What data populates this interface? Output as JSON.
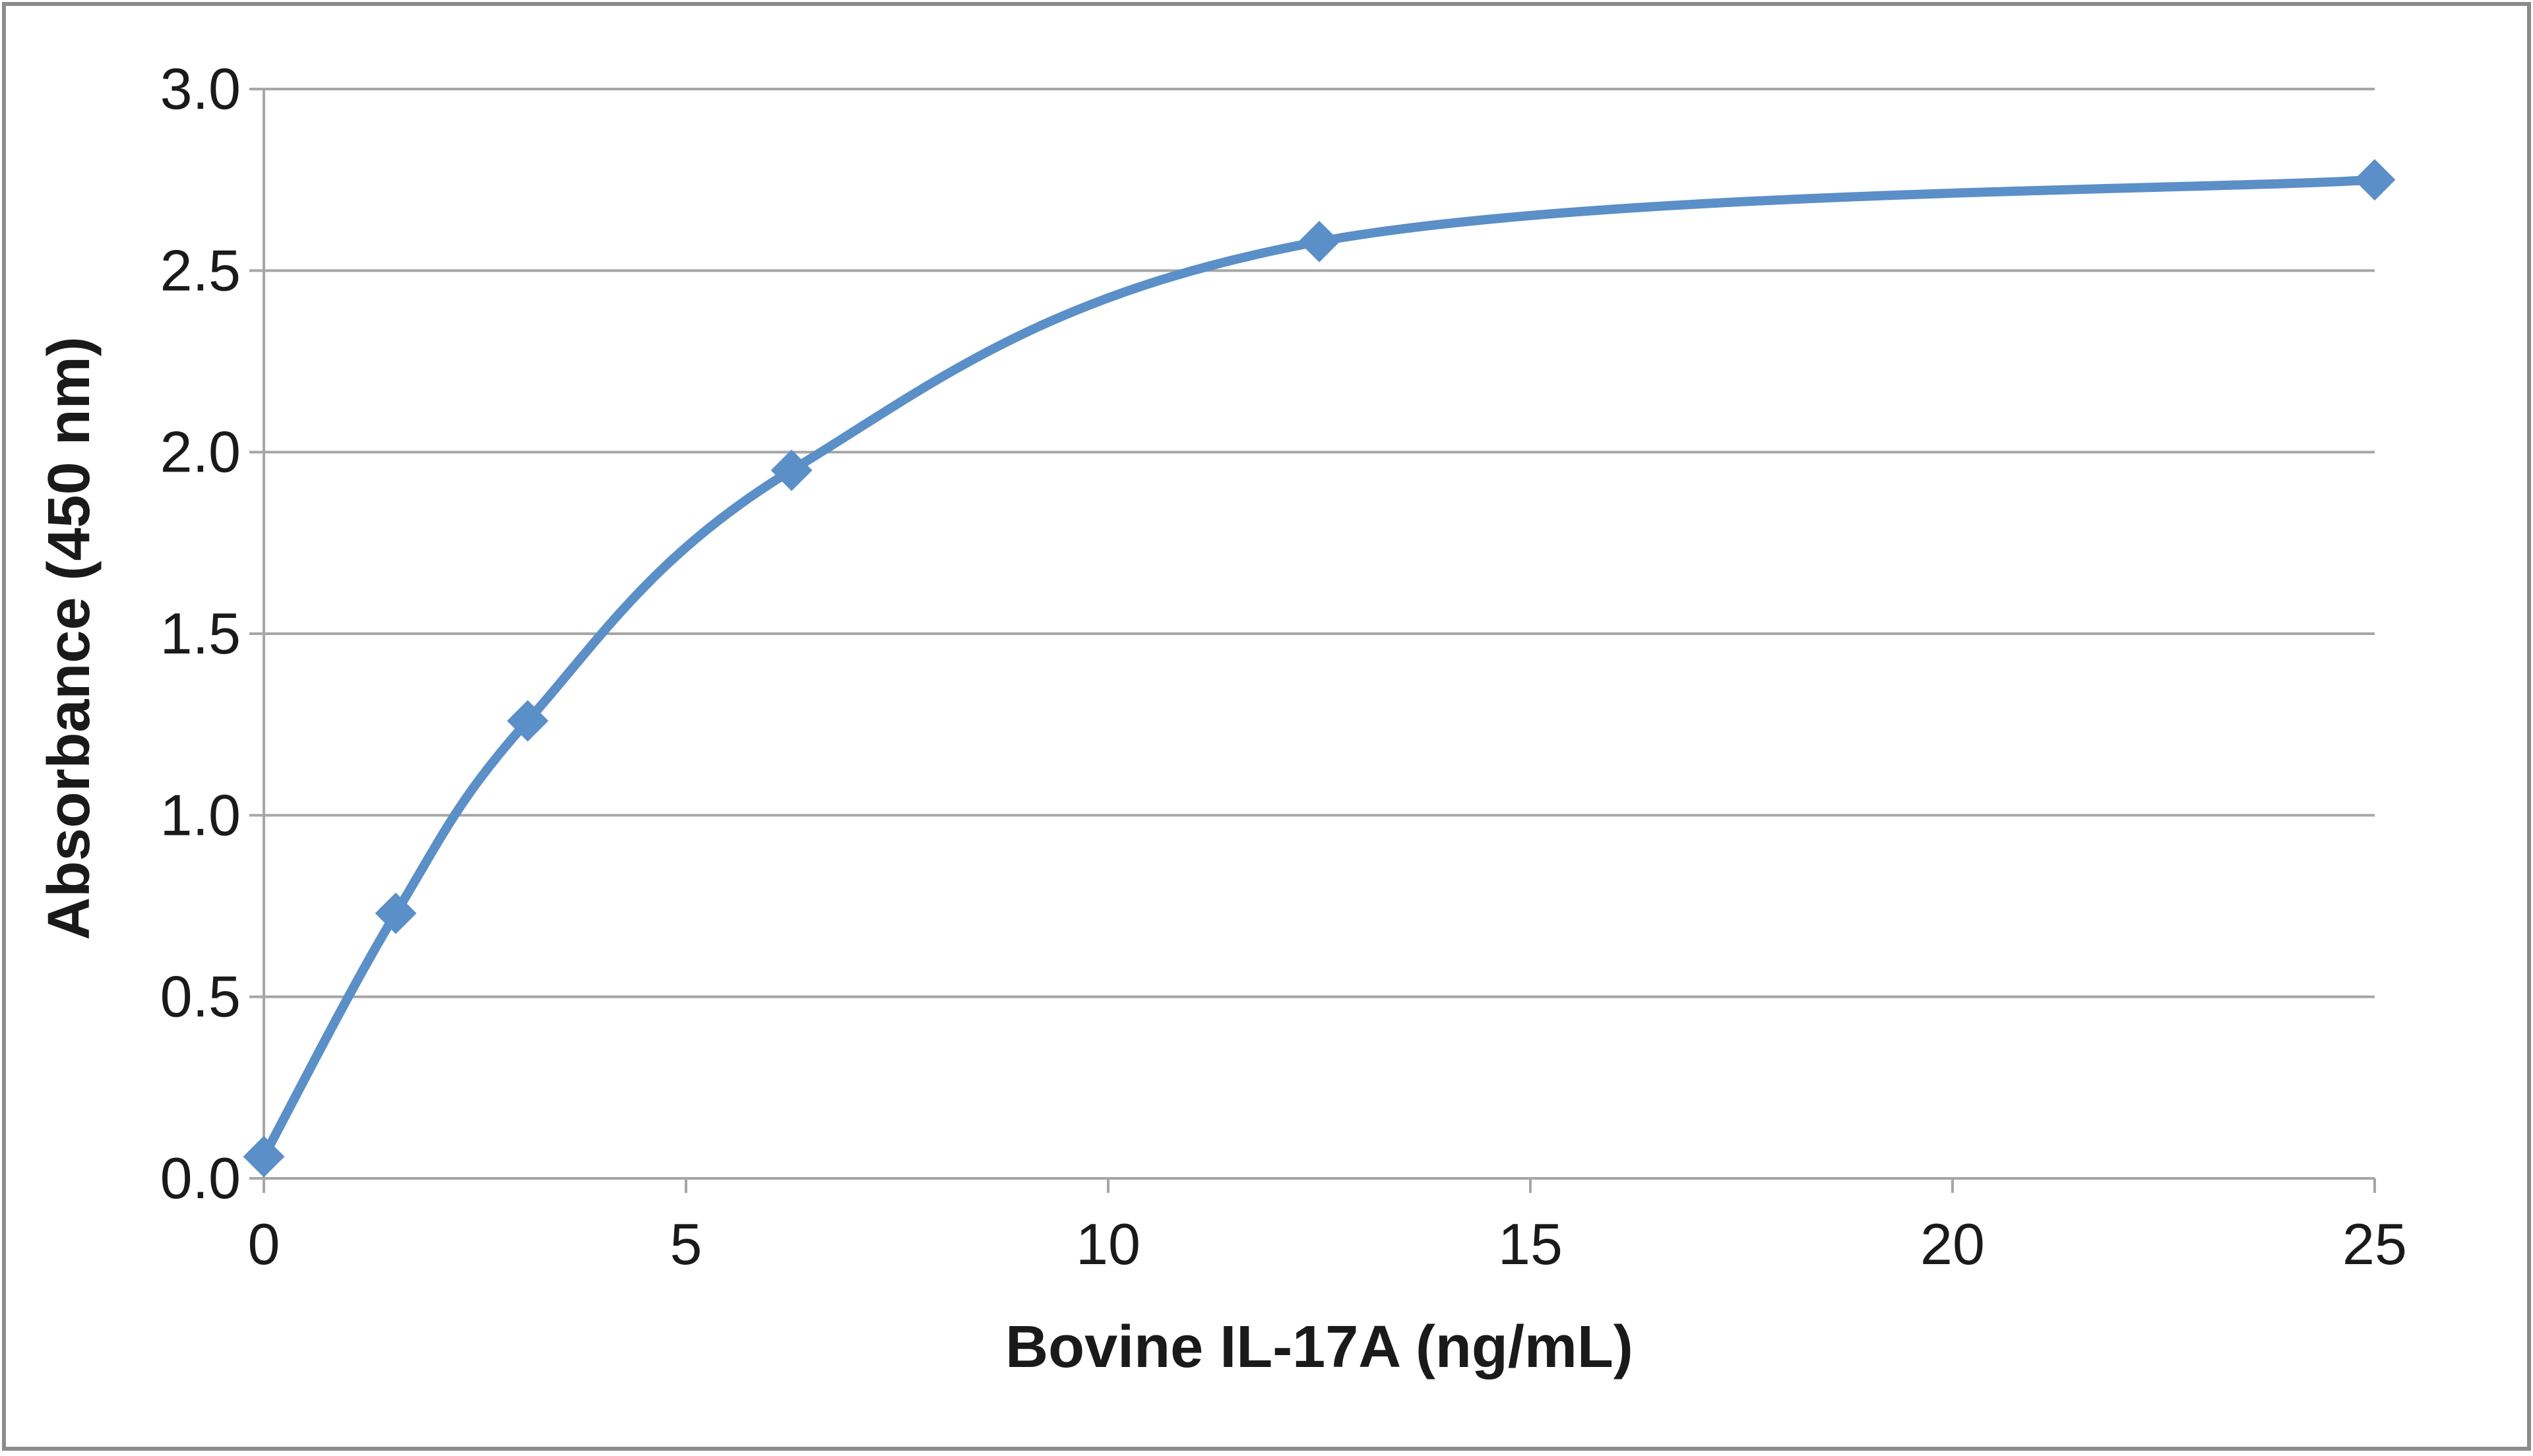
{
  "chart_data": {
    "type": "line",
    "title": "",
    "xlabel": "Bovine IL-17A  (ng/mL)",
    "ylabel": "Absorbance  (450 nm)",
    "xlim": [
      0,
      25
    ],
    "ylim": [
      0,
      3.0
    ],
    "x_ticks": [
      0,
      5,
      10,
      15,
      20,
      25
    ],
    "y_ticks": [
      0.0,
      0.5,
      1.0,
      1.5,
      2.0,
      2.5,
      3.0
    ],
    "x_tick_labels": [
      "0",
      "5",
      "10",
      "15",
      "20",
      "25"
    ],
    "y_tick_labels": [
      "0.0",
      "0.5",
      "1.0",
      "1.5",
      "2.0",
      "2.5",
      "3.0"
    ],
    "grid": "horizontal",
    "legend": "none",
    "marker": "diamond",
    "smooth": true,
    "colors": {
      "series": "#5b8fc7",
      "grid": "#a6a6a6",
      "axis": "#a6a6a6",
      "text": "#1a1a1a",
      "border": "#8c8c8c"
    },
    "series": [
      {
        "x": [
          0,
          1.5625,
          3.125,
          6.25,
          12.5,
          25
        ],
        "y": [
          0.06,
          0.73,
          1.26,
          1.95,
          2.58,
          2.75
        ]
      }
    ]
  }
}
